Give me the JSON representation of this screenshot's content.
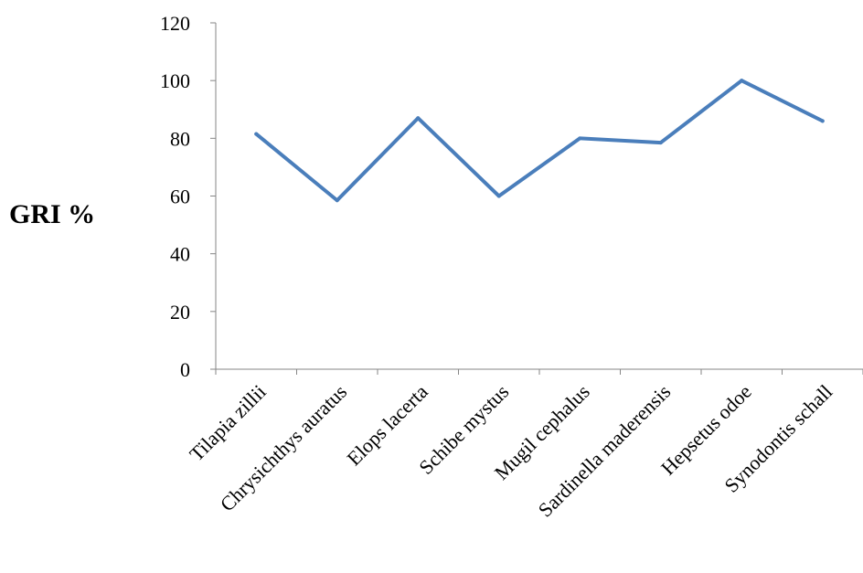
{
  "chart_data": {
    "type": "line",
    "ylabel": "GRI %",
    "xlabel": "",
    "title": "",
    "categories": [
      "Tilapia zillii",
      "Chrysichthys auratus",
      "Elops lacerta",
      "Schibe mystus",
      "Mugil cephalus",
      "Sardinella maderensis",
      "Hepsetus odoe",
      "Synodontis schall"
    ],
    "series": [
      {
        "values": [
          81.5,
          58.5,
          87,
          60,
          80,
          78.5,
          100,
          86
        ]
      }
    ],
    "yticks": [
      "0",
      "20",
      "40",
      "60",
      "80",
      "100",
      "120"
    ],
    "ylim": [
      0,
      120
    ],
    "grid": false,
    "legend": "none",
    "line_color": "#4a7ebb"
  }
}
